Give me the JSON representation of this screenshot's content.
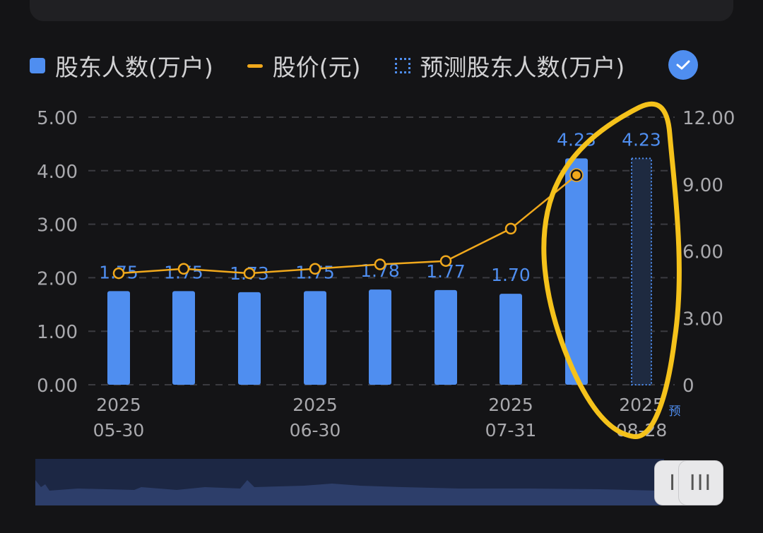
{
  "legend": {
    "bar_label": "股东人数(万户)",
    "line_label": "股价(元)",
    "pred_label": "预测股东人数(万户)"
  },
  "colors": {
    "bar": "#4f8ef0",
    "line": "#f0a81c",
    "annotation": "#f5c21b",
    "bg": "#141416"
  },
  "slider": {
    "handle_left": "II",
    "handle_right": "III"
  },
  "chart_data": {
    "type": "bar",
    "categories": [
      "2025-05-30",
      "",
      "",
      "2025-06-30",
      "",
      "",
      "2025-07-31",
      "",
      "2025-08-28"
    ],
    "x_tick_labels": [
      {
        "index": 0,
        "year": "2025",
        "date": "05-30"
      },
      {
        "index": 3,
        "year": "2025",
        "date": "06-30"
      },
      {
        "index": 6,
        "year": "2025",
        "date": "07-31"
      },
      {
        "index": 8,
        "year": "2025",
        "date": "08-28"
      }
    ],
    "series": [
      {
        "name": "股东人数(万户)",
        "type": "bar",
        "axis": "left",
        "values": [
          1.75,
          1.75,
          1.73,
          1.75,
          1.78,
          1.77,
          1.7,
          4.23,
          null
        ],
        "labels": [
          "1.75",
          "1.75",
          "1.73",
          "1.75",
          "1.78",
          "1.77",
          "1.70",
          "4.23",
          ""
        ]
      },
      {
        "name": "股价(元)",
        "type": "line",
        "axis": "right",
        "values": [
          5.0,
          5.2,
          5.0,
          5.2,
          5.4,
          5.55,
          7.0,
          9.4,
          null
        ]
      },
      {
        "name": "预测股东人数(万户)",
        "type": "bar-dotted",
        "axis": "left",
        "values": [
          null,
          null,
          null,
          null,
          null,
          null,
          null,
          null,
          4.23
        ],
        "labels": [
          "",
          "",
          "",
          "",
          "",
          "",
          "",
          "",
          "4.23"
        ]
      }
    ],
    "left_axis": {
      "ylim": [
        0,
        5
      ],
      "ticks": [
        "0.00",
        "1.00",
        "2.00",
        "3.00",
        "4.00",
        "5.00"
      ]
    },
    "right_axis": {
      "ylim": [
        0,
        12
      ],
      "ticks": [
        "0",
        "3.00",
        "6.00",
        "9.00",
        "12.00"
      ]
    },
    "pred_marker": "预",
    "grid": true,
    "legend_position": "top"
  }
}
